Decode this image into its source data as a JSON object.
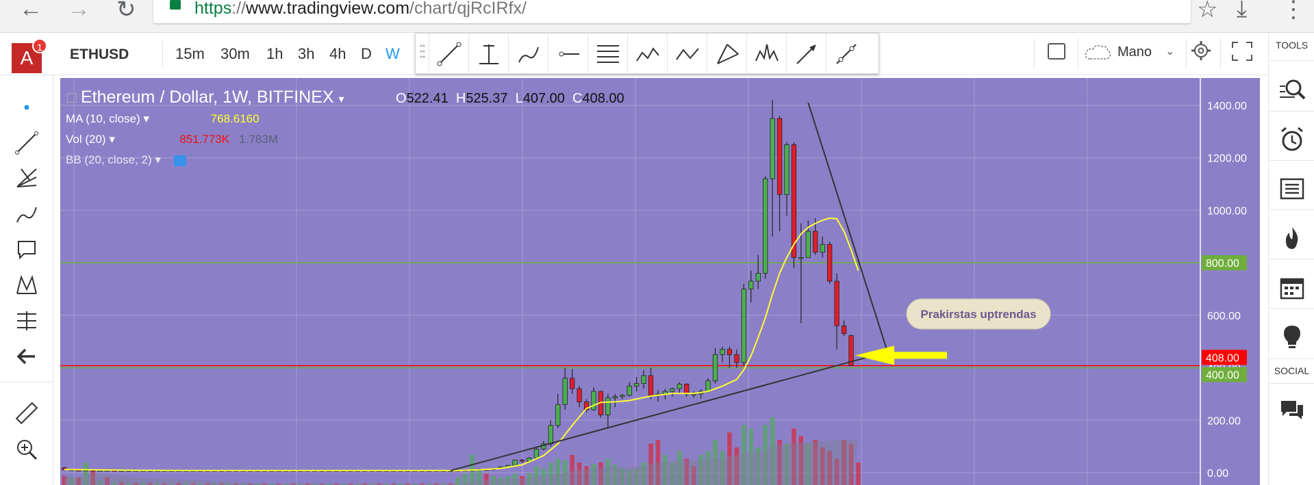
{
  "browser": {
    "url_scheme": "https",
    "url_sep": "://",
    "url_domain": "www.tradingview.com",
    "url_path": "/chart/qjRcIRfx/"
  },
  "header": {
    "avatar_letter": "A",
    "avatar_badge": "1",
    "symbol": "ETHUSD",
    "intervals": [
      "15m",
      "30m",
      "1h",
      "3h",
      "4h",
      "D",
      "W"
    ],
    "active_interval": "W",
    "brush_label": "Mano"
  },
  "right_panel": {
    "tools_label": "TOOLS",
    "social_label": "SOCIAL"
  },
  "legend": {
    "title": "Ethereum / Dollar, 1W, BITFINEX",
    "o_label": "O",
    "o_value": "522.41",
    "h_label": "H",
    "h_value": "525.37",
    "l_label": "L",
    "l_value": "407.00",
    "c_label": "C",
    "c_value": "408.00",
    "ma_label": "MA (10, close)",
    "ma_value": "768.6160",
    "vol_label": "Vol (20)",
    "vol_value": "851.773K",
    "vol_ma_value": "1.783M",
    "bb_label": "BB (20, close, 2)"
  },
  "colors": {
    "chart_bg": "#8b80c7",
    "up_candle": "#4caf50",
    "down_candle": "#e01e2c",
    "ma_line": "#ffff33",
    "price_tag_red": "#ff0000",
    "price_tag_green": "#4caf50",
    "accent": "#2196f3"
  },
  "chart_data": {
    "type": "candlestick",
    "symbol": "Ethereum / Dollar",
    "interval": "1W",
    "exchange": "BITFINEX",
    "ylim": [
      -50,
      1450
    ],
    "y_ticks": [
      0,
      200,
      400,
      600,
      800,
      1000,
      1200,
      1400
    ],
    "y_tick_labels": [
      "0.00",
      "200.00",
      "400.00",
      "600.00",
      "800.00",
      "1000.00",
      "1200.00",
      "1400.00"
    ],
    "grid": true,
    "candles": [
      {
        "o": 19,
        "h": 22,
        "l": 10,
        "c": 12
      },
      {
        "o": 12,
        "h": 13,
        "l": 9,
        "c": 10
      },
      {
        "o": 10,
        "h": 12,
        "l": 8,
        "c": 9
      },
      {
        "o": 9,
        "h": 11,
        "l": 8,
        "c": 10
      },
      {
        "o": 10,
        "h": 11,
        "l": 8,
        "c": 9
      },
      {
        "o": 9,
        "h": 10,
        "l": 8,
        "c": 9
      },
      {
        "o": 9,
        "h": 10,
        "l": 8,
        "c": 9
      },
      {
        "o": 9,
        "h": 10,
        "l": 8,
        "c": 8
      },
      {
        "o": 8,
        "h": 9,
        "l": 7,
        "c": 8
      },
      {
        "o": 8,
        "h": 9,
        "l": 7,
        "c": 8
      },
      {
        "o": 8,
        "h": 9,
        "l": 7,
        "c": 8
      },
      {
        "o": 8,
        "h": 9,
        "l": 7,
        "c": 8
      },
      {
        "o": 8,
        "h": 9,
        "l": 7,
        "c": 8
      },
      {
        "o": 8,
        "h": 9,
        "l": 7,
        "c": 8
      },
      {
        "o": 8,
        "h": 9,
        "l": 7,
        "c": 8
      },
      {
        "o": 8,
        "h": 9,
        "l": 7,
        "c": 8
      },
      {
        "o": 8,
        "h": 9,
        "l": 7,
        "c": 8
      },
      {
        "o": 8,
        "h": 9,
        "l": 7,
        "c": 8
      },
      {
        "o": 8,
        "h": 9,
        "l": 7,
        "c": 8
      },
      {
        "o": 8,
        "h": 9,
        "l": 7,
        "c": 8
      },
      {
        "o": 8,
        "h": 9,
        "l": 7,
        "c": 8
      },
      {
        "o": 8,
        "h": 9,
        "l": 7,
        "c": 8
      },
      {
        "o": 8,
        "h": 9,
        "l": 7,
        "c": 8
      },
      {
        "o": 8,
        "h": 9,
        "l": 7,
        "c": 8
      },
      {
        "o": 8,
        "h": 9,
        "l": 7,
        "c": 8
      },
      {
        "o": 8,
        "h": 9,
        "l": 7,
        "c": 8
      },
      {
        "o": 8,
        "h": 9,
        "l": 7,
        "c": 8
      },
      {
        "o": 8,
        "h": 9,
        "l": 7,
        "c": 8
      },
      {
        "o": 8,
        "h": 9,
        "l": 7,
        "c": 8
      },
      {
        "o": 8,
        "h": 9,
        "l": 7,
        "c": 8
      },
      {
        "o": 8,
        "h": 9,
        "l": 7,
        "c": 8
      },
      {
        "o": 8,
        "h": 9,
        "l": 7,
        "c": 8
      },
      {
        "o": 8,
        "h": 9,
        "l": 7,
        "c": 8
      },
      {
        "o": 8,
        "h": 9,
        "l": 7,
        "c": 8
      },
      {
        "o": 8,
        "h": 9,
        "l": 7,
        "c": 8
      },
      {
        "o": 8,
        "h": 9,
        "l": 7,
        "c": 8
      },
      {
        "o": 8,
        "h": 9,
        "l": 7,
        "c": 8
      },
      {
        "o": 8,
        "h": 9,
        "l": 7,
        "c": 8
      },
      {
        "o": 8,
        "h": 9,
        "l": 7,
        "c": 8
      },
      {
        "o": 8,
        "h": 9,
        "l": 7,
        "c": 8
      },
      {
        "o": 8,
        "h": 9,
        "l": 7,
        "c": 8
      },
      {
        "o": 8,
        "h": 9,
        "l": 7,
        "c": 8
      },
      {
        "o": 8,
        "h": 9,
        "l": 7,
        "c": 8
      },
      {
        "o": 8,
        "h": 9,
        "l": 7,
        "c": 8
      },
      {
        "o": 8,
        "h": 9,
        "l": 7,
        "c": 8
      },
      {
        "o": 8,
        "h": 9,
        "l": 7,
        "c": 8
      },
      {
        "o": 8,
        "h": 9,
        "l": 7,
        "c": 8
      },
      {
        "o": 8,
        "h": 9,
        "l": 7,
        "c": 8
      },
      {
        "o": 8,
        "h": 9,
        "l": 7,
        "c": 8
      },
      {
        "o": 8,
        "h": 9,
        "l": 7,
        "c": 8
      },
      {
        "o": 8,
        "h": 9,
        "l": 7,
        "c": 8
      },
      {
        "o": 8,
        "h": 9,
        "l": 7,
        "c": 8
      },
      {
        "o": 8,
        "h": 9,
        "l": 7,
        "c": 8
      },
      {
        "o": 8,
        "h": 9,
        "l": 7,
        "c": 8
      },
      {
        "o": 8,
        "h": 9,
        "l": 7,
        "c": 8
      },
      {
        "o": 8,
        "h": 10,
        "l": 7,
        "c": 9
      },
      {
        "o": 9,
        "h": 11,
        "l": 8,
        "c": 10
      },
      {
        "o": 10,
        "h": 12,
        "l": 9,
        "c": 11
      },
      {
        "o": 11,
        "h": 15,
        "l": 10,
        "c": 13
      },
      {
        "o": 13,
        "h": 15,
        "l": 10,
        "c": 11
      },
      {
        "o": 11,
        "h": 16,
        "l": 10,
        "c": 15
      },
      {
        "o": 15,
        "h": 24,
        "l": 14,
        "c": 22
      },
      {
        "o": 22,
        "h": 30,
        "l": 20,
        "c": 28
      },
      {
        "o": 28,
        "h": 50,
        "l": 27,
        "c": 48
      },
      {
        "o": 48,
        "h": 52,
        "l": 38,
        "c": 44
      },
      {
        "o": 44,
        "h": 60,
        "l": 42,
        "c": 56
      },
      {
        "o": 56,
        "h": 100,
        "l": 54,
        "c": 90
      },
      {
        "o": 90,
        "h": 120,
        "l": 85,
        "c": 110
      },
      {
        "o": 110,
        "h": 200,
        "l": 100,
        "c": 180
      },
      {
        "o": 180,
        "h": 300,
        "l": 170,
        "c": 260
      },
      {
        "o": 260,
        "h": 400,
        "l": 240,
        "c": 360
      },
      {
        "o": 360,
        "h": 395,
        "l": 300,
        "c": 320
      },
      {
        "o": 320,
        "h": 330,
        "l": 250,
        "c": 270
      },
      {
        "o": 270,
        "h": 280,
        "l": 230,
        "c": 240
      },
      {
        "o": 240,
        "h": 325,
        "l": 235,
        "c": 310
      },
      {
        "o": 310,
        "h": 312,
        "l": 210,
        "c": 220
      },
      {
        "o": 220,
        "h": 300,
        "l": 170,
        "c": 285
      },
      {
        "o": 285,
        "h": 300,
        "l": 250,
        "c": 290
      },
      {
        "o": 290,
        "h": 300,
        "l": 280,
        "c": 295
      },
      {
        "o": 295,
        "h": 345,
        "l": 290,
        "c": 330
      },
      {
        "o": 330,
        "h": 365,
        "l": 310,
        "c": 340
      },
      {
        "o": 340,
        "h": 390,
        "l": 320,
        "c": 370
      },
      {
        "o": 370,
        "h": 400,
        "l": 280,
        "c": 295
      },
      {
        "o": 295,
        "h": 315,
        "l": 270,
        "c": 300
      },
      {
        "o": 300,
        "h": 320,
        "l": 280,
        "c": 310
      },
      {
        "o": 310,
        "h": 325,
        "l": 290,
        "c": 320
      },
      {
        "o": 320,
        "h": 345,
        "l": 300,
        "c": 338
      },
      {
        "o": 338,
        "h": 340,
        "l": 290,
        "c": 300
      },
      {
        "o": 300,
        "h": 310,
        "l": 285,
        "c": 300
      },
      {
        "o": 300,
        "h": 318,
        "l": 282,
        "c": 310
      },
      {
        "o": 310,
        "h": 360,
        "l": 305,
        "c": 350
      },
      {
        "o": 350,
        "h": 475,
        "l": 340,
        "c": 450
      },
      {
        "o": 450,
        "h": 480,
        "l": 420,
        "c": 470
      },
      {
        "o": 470,
        "h": 480,
        "l": 400,
        "c": 450
      },
      {
        "o": 450,
        "h": 470,
        "l": 400,
        "c": 420
      },
      {
        "o": 420,
        "h": 720,
        "l": 410,
        "c": 700
      },
      {
        "o": 700,
        "h": 770,
        "l": 650,
        "c": 730
      },
      {
        "o": 730,
        "h": 830,
        "l": 700,
        "c": 760
      },
      {
        "o": 760,
        "h": 1130,
        "l": 740,
        "c": 1120
      },
      {
        "o": 1120,
        "h": 1420,
        "l": 900,
        "c": 1350
      },
      {
        "o": 1350,
        "h": 1360,
        "l": 920,
        "c": 1060
      },
      {
        "o": 1060,
        "h": 1260,
        "l": 980,
        "c": 1250
      },
      {
        "o": 1250,
        "h": 1260,
        "l": 780,
        "c": 820
      },
      {
        "o": 820,
        "h": 950,
        "l": 570,
        "c": 820
      },
      {
        "o": 820,
        "h": 960,
        "l": 820,
        "c": 920
      },
      {
        "o": 920,
        "h": 970,
        "l": 830,
        "c": 840
      },
      {
        "o": 840,
        "h": 900,
        "l": 820,
        "c": 870
      },
      {
        "o": 870,
        "h": 880,
        "l": 720,
        "c": 730
      },
      {
        "o": 730,
        "h": 760,
        "l": 470,
        "c": 560
      },
      {
        "o": 560,
        "h": 580,
        "l": 520,
        "c": 530
      },
      {
        "o": 522.41,
        "h": 525.37,
        "l": 407,
        "c": 408
      }
    ],
    "ma_10": [
      [
        0,
        12
      ],
      [
        10,
        9
      ],
      [
        20,
        8
      ],
      [
        55,
        8
      ],
      [
        58,
        11
      ],
      [
        61,
        16
      ],
      [
        64,
        30
      ],
      [
        67,
        65
      ],
      [
        69,
        110
      ],
      [
        71,
        180
      ],
      [
        73,
        245
      ],
      [
        75,
        268
      ],
      [
        77,
        270
      ],
      [
        79,
        275
      ],
      [
        82,
        292
      ],
      [
        85,
        302
      ],
      [
        88,
        302
      ],
      [
        90,
        310
      ],
      [
        92,
        330
      ],
      [
        94,
        355
      ],
      [
        95,
        392
      ],
      [
        96,
        445
      ],
      [
        97,
        515
      ],
      [
        98,
        590
      ],
      [
        99,
        680
      ],
      [
        100,
        760
      ],
      [
        101,
        820
      ],
      [
        102,
        870
      ],
      [
        103,
        910
      ],
      [
        104,
        935
      ],
      [
        105,
        950
      ],
      [
        106,
        962
      ],
      [
        107,
        970
      ],
      [
        108,
        968
      ],
      [
        109,
        920
      ],
      [
        110,
        850
      ],
      [
        111,
        770
      ]
    ],
    "volume": [
      {
        "v": 0.12,
        "up": false
      },
      {
        "v": 0.1,
        "up": true
      },
      {
        "v": 0.1,
        "up": false
      },
      {
        "v": 0.3,
        "up": true
      },
      {
        "v": 0.2,
        "up": false
      },
      {
        "v": 0.06,
        "up": true
      },
      {
        "v": 0.1,
        "up": false
      },
      {
        "v": 0.04,
        "up": true
      },
      {
        "v": 0.04,
        "up": false
      },
      {
        "v": 0.03,
        "up": true
      },
      {
        "v": 0.03,
        "up": false
      },
      {
        "v": 0.04,
        "up": true
      },
      {
        "v": 0.03,
        "up": false
      },
      {
        "v": 0.03,
        "up": true
      },
      {
        "v": 0.02,
        "up": false
      },
      {
        "v": 0.02,
        "up": true
      },
      {
        "v": 0.03,
        "up": false
      },
      {
        "v": 0.02,
        "up": true
      },
      {
        "v": 0.02,
        "up": false
      },
      {
        "v": 0.02,
        "up": true
      },
      {
        "v": 0.02,
        "up": false
      },
      {
        "v": 0.02,
        "up": true
      },
      {
        "v": 0.02,
        "up": false
      },
      {
        "v": 0.02,
        "up": true
      },
      {
        "v": 0.02,
        "up": false
      },
      {
        "v": 0.02,
        "up": true
      },
      {
        "v": 0.02,
        "up": false
      },
      {
        "v": 0.02,
        "up": true
      },
      {
        "v": 0.02,
        "up": false
      },
      {
        "v": 0.02,
        "up": true
      },
      {
        "v": 0.02,
        "up": false
      },
      {
        "v": 0.02,
        "up": true
      },
      {
        "v": 0.02,
        "up": false
      },
      {
        "v": 0.02,
        "up": true
      },
      {
        "v": 0.02,
        "up": false
      },
      {
        "v": 0.02,
        "up": true
      },
      {
        "v": 0.02,
        "up": false
      },
      {
        "v": 0.02,
        "up": true
      },
      {
        "v": 0.02,
        "up": false
      },
      {
        "v": 0.02,
        "up": true
      },
      {
        "v": 0.02,
        "up": false
      },
      {
        "v": 0.02,
        "up": true
      },
      {
        "v": 0.02,
        "up": false
      },
      {
        "v": 0.02,
        "up": true
      },
      {
        "v": 0.02,
        "up": false
      },
      {
        "v": 0.02,
        "up": true
      },
      {
        "v": 0.02,
        "up": false
      },
      {
        "v": 0.02,
        "up": true
      },
      {
        "v": 0.02,
        "up": false
      },
      {
        "v": 0.02,
        "up": true
      },
      {
        "v": 0.02,
        "up": false
      },
      {
        "v": 0.02,
        "up": true
      },
      {
        "v": 0.02,
        "up": false
      },
      {
        "v": 0.02,
        "up": true
      },
      {
        "v": 0.02,
        "up": false
      },
      {
        "v": 0.1,
        "up": true
      },
      {
        "v": 0.15,
        "up": true
      },
      {
        "v": 0.4,
        "up": true
      },
      {
        "v": 0.2,
        "up": true
      },
      {
        "v": 0.15,
        "up": false
      },
      {
        "v": 0.12,
        "up": true
      },
      {
        "v": 0.1,
        "up": true
      },
      {
        "v": 0.12,
        "up": true
      },
      {
        "v": 0.15,
        "up": true
      },
      {
        "v": 0.12,
        "up": false
      },
      {
        "v": 0.16,
        "up": true
      },
      {
        "v": 0.25,
        "up": true
      },
      {
        "v": 0.22,
        "up": true
      },
      {
        "v": 0.3,
        "up": true
      },
      {
        "v": 0.35,
        "up": true
      },
      {
        "v": 0.33,
        "up": true
      },
      {
        "v": 0.4,
        "up": false
      },
      {
        "v": 0.3,
        "up": false
      },
      {
        "v": 0.25,
        "up": false
      },
      {
        "v": 0.28,
        "up": true
      },
      {
        "v": 0.3,
        "up": false
      },
      {
        "v": 0.35,
        "up": true
      },
      {
        "v": 0.27,
        "up": true
      },
      {
        "v": 0.22,
        "up": true
      },
      {
        "v": 0.2,
        "up": true
      },
      {
        "v": 0.22,
        "up": true
      },
      {
        "v": 0.3,
        "up": true
      },
      {
        "v": 0.55,
        "up": false
      },
      {
        "v": 0.6,
        "up": false
      },
      {
        "v": 0.4,
        "up": true
      },
      {
        "v": 0.3,
        "up": true
      },
      {
        "v": 0.45,
        "up": true
      },
      {
        "v": 0.35,
        "up": false
      },
      {
        "v": 0.25,
        "up": false
      },
      {
        "v": 0.4,
        "up": true
      },
      {
        "v": 0.45,
        "up": true
      },
      {
        "v": 0.6,
        "up": true
      },
      {
        "v": 0.45,
        "up": true
      },
      {
        "v": 0.7,
        "up": false
      },
      {
        "v": 0.5,
        "up": false
      },
      {
        "v": 0.8,
        "up": true
      },
      {
        "v": 0.75,
        "up": true
      },
      {
        "v": 0.5,
        "up": true
      },
      {
        "v": 0.8,
        "up": true
      },
      {
        "v": 0.9,
        "up": true
      },
      {
        "v": 0.6,
        "up": false
      },
      {
        "v": 0.55,
        "up": true
      },
      {
        "v": 0.75,
        "up": false
      },
      {
        "v": 0.65,
        "up": false
      },
      {
        "v": 0.55,
        "up": true
      },
      {
        "v": 0.6,
        "up": false
      },
      {
        "v": 0.5,
        "up": false
      },
      {
        "v": 0.45,
        "up": false
      },
      {
        "v": 0.35,
        "up": false
      },
      {
        "v": 0.6,
        "up": false
      },
      {
        "v": 0.55,
        "up": false
      },
      {
        "v": 0.3,
        "up": false
      }
    ],
    "horizontal_lines": [
      {
        "price": 800,
        "color": "#6fae3c",
        "label": "800.00"
      },
      {
        "price": 400,
        "color": "#6fae3c",
        "label": "400.00"
      },
      {
        "price": 408,
        "color": "#ff0000",
        "label": "408.00"
      }
    ],
    "trendlines": [
      {
        "from": [
          54,
          8
        ],
        "to": [
          115,
          460
        ],
        "color": "#333333"
      },
      {
        "from": [
          104,
          1410
        ],
        "to": [
          115,
          468
        ],
        "color": "#333333"
      }
    ],
    "annotation": {
      "text": "Prakirstas uptrendas",
      "arrow_to_price": 447
    }
  }
}
